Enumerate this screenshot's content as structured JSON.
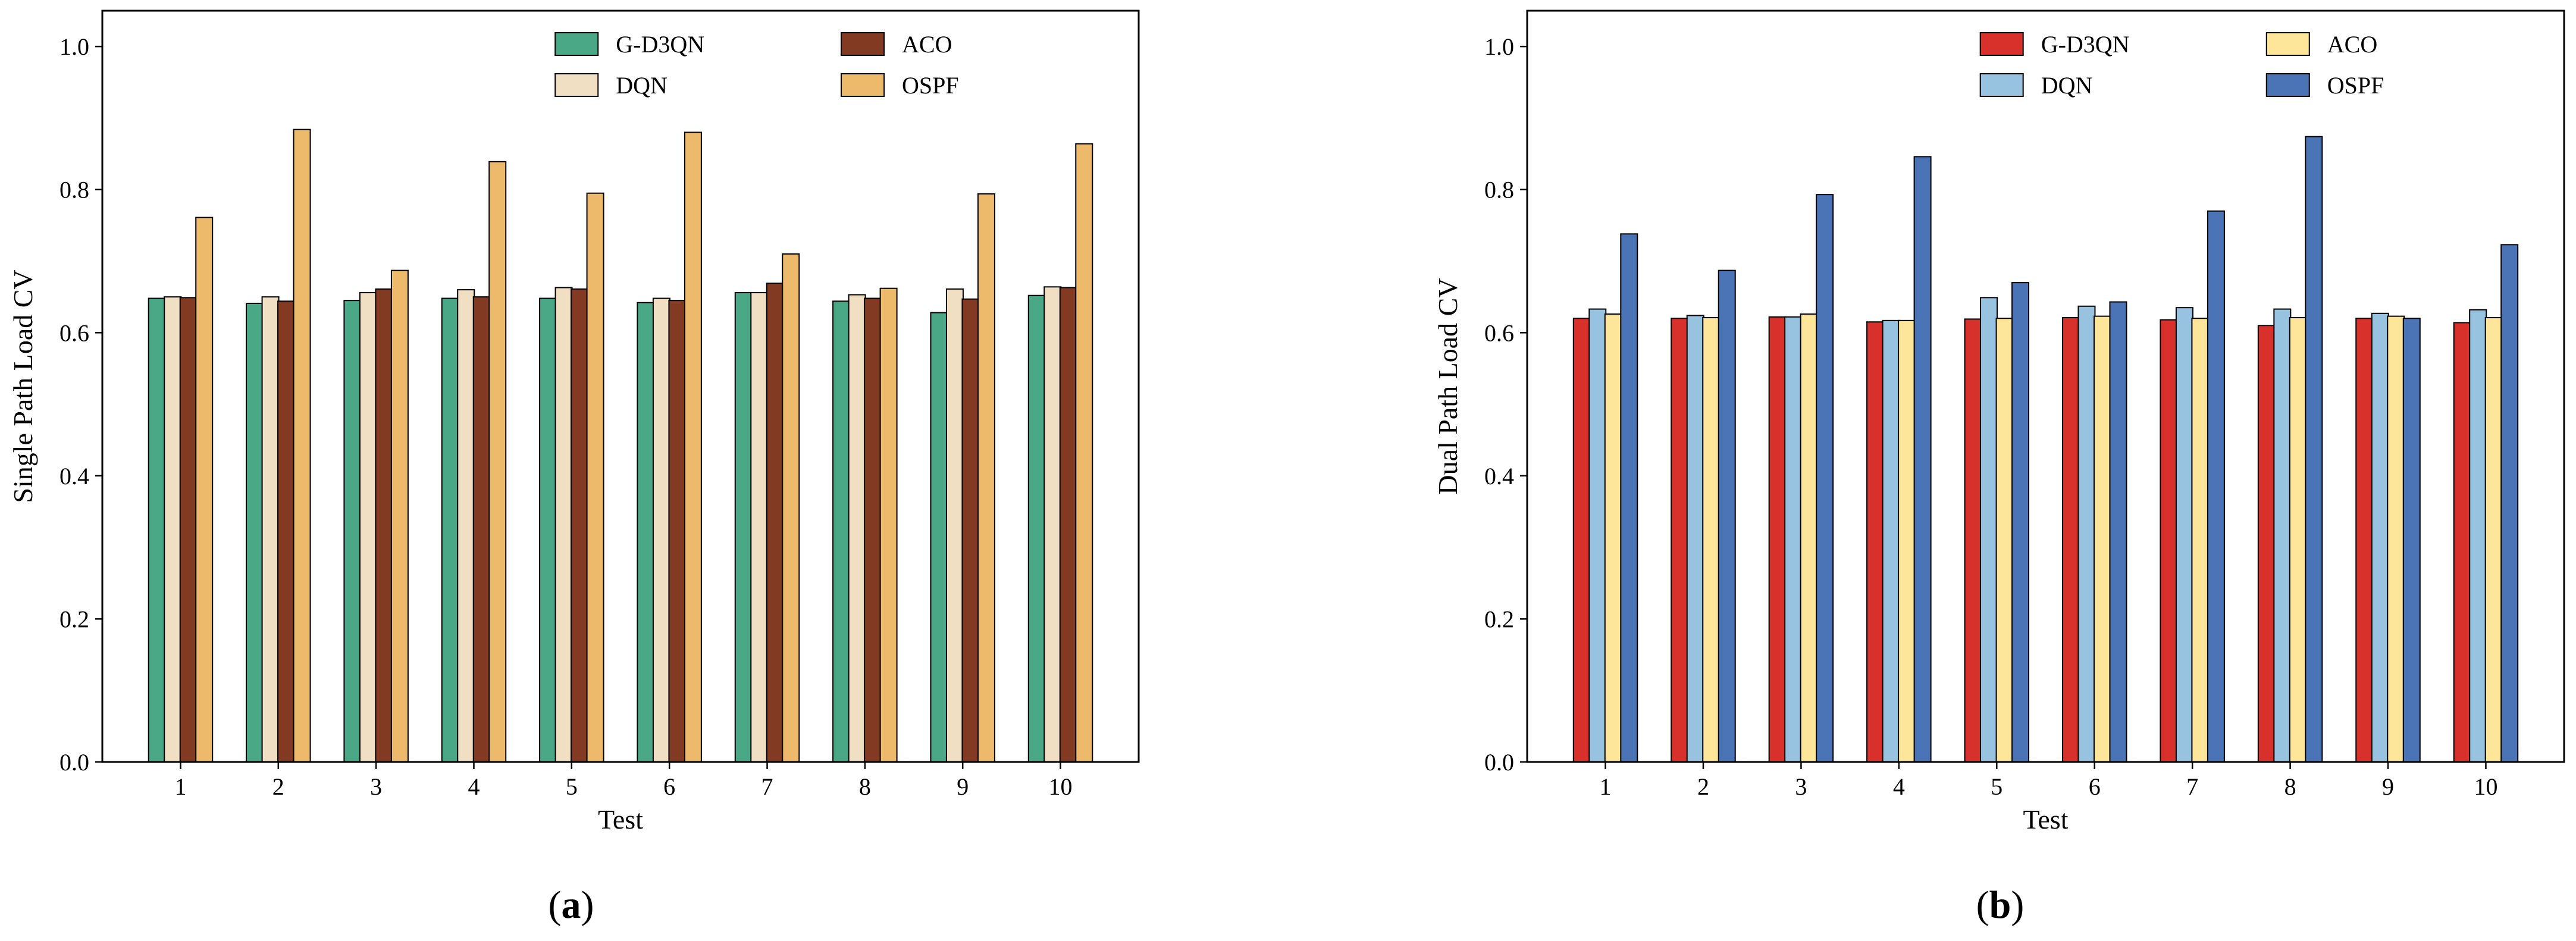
{
  "chart_data": [
    {
      "type": "bar",
      "panel_label": "a",
      "title": "",
      "xlabel": "Test",
      "ylabel": "Single Path Load CV",
      "categories": [
        "1",
        "2",
        "3",
        "4",
        "5",
        "6",
        "7",
        "8",
        "9",
        "10"
      ],
      "ylim": [
        0,
        1.05
      ],
      "yticks": [
        0.0,
        0.2,
        0.4,
        0.6,
        0.8,
        1.0
      ],
      "ytick_labels": [
        "0.0",
        "0.2",
        "0.4",
        "0.6",
        "0.8",
        "1.0"
      ],
      "grid": false,
      "legend_position": "top-right",
      "legend_columns": 2,
      "legend_order": [
        "G-D3QN",
        "DQN",
        "ACO",
        "OSPF"
      ],
      "series": [
        {
          "name": "G-D3QN",
          "color": "#4aa887",
          "values": [
            0.648,
            0.641,
            0.645,
            0.648,
            0.648,
            0.642,
            0.656,
            0.644,
            0.628,
            0.652
          ]
        },
        {
          "name": "DQN",
          "color": "#f0dfc2",
          "values": [
            0.65,
            0.65,
            0.656,
            0.66,
            0.663,
            0.648,
            0.656,
            0.653,
            0.661,
            0.664
          ]
        },
        {
          "name": "ACO",
          "color": "#833a22",
          "values": [
            0.649,
            0.644,
            0.661,
            0.65,
            0.661,
            0.645,
            0.669,
            0.648,
            0.647,
            0.663
          ]
        },
        {
          "name": "OSPF",
          "color": "#ecba6a",
          "values": [
            0.761,
            0.884,
            0.687,
            0.839,
            0.795,
            0.88,
            0.71,
            0.662,
            0.794,
            0.864
          ]
        }
      ]
    },
    {
      "type": "bar",
      "panel_label": "b",
      "title": "",
      "xlabel": "Test",
      "ylabel": "Dual Path Load CV",
      "categories": [
        "1",
        "2",
        "3",
        "4",
        "5",
        "6",
        "7",
        "8",
        "9",
        "10"
      ],
      "ylim": [
        0,
        1.05
      ],
      "yticks": [
        0.0,
        0.2,
        0.4,
        0.6,
        0.8,
        1.0
      ],
      "ytick_labels": [
        "0.0",
        "0.2",
        "0.4",
        "0.6",
        "0.8",
        "1.0"
      ],
      "grid": false,
      "legend_position": "top-right",
      "legend_columns": 2,
      "legend_order": [
        "G-D3QN",
        "DQN",
        "ACO",
        "OSPF"
      ],
      "series": [
        {
          "name": "G-D3QN",
          "color": "#d8312b",
          "values": [
            0.62,
            0.62,
            0.622,
            0.615,
            0.619,
            0.621,
            0.618,
            0.61,
            0.62,
            0.614
          ]
        },
        {
          "name": "DQN",
          "color": "#98c3e0",
          "values": [
            0.633,
            0.624,
            0.622,
            0.617,
            0.649,
            0.637,
            0.635,
            0.633,
            0.627,
            0.632
          ]
        },
        {
          "name": "ACO",
          "color": "#fde59a",
          "values": [
            0.626,
            0.621,
            0.626,
            0.617,
            0.62,
            0.623,
            0.62,
            0.621,
            0.623,
            0.621
          ]
        },
        {
          "name": "OSPF",
          "color": "#4a74b6",
          "values": [
            0.738,
            0.687,
            0.793,
            0.846,
            0.67,
            0.643,
            0.77,
            0.874,
            0.62,
            0.723
          ]
        }
      ]
    }
  ]
}
